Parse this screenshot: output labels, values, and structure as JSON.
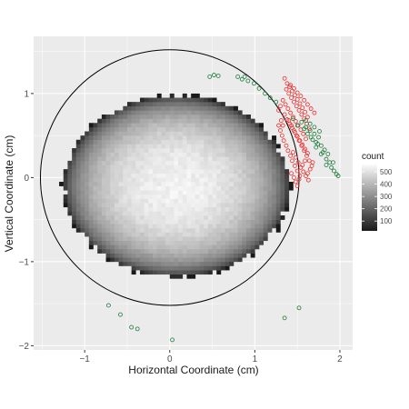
{
  "chart_data": {
    "type": "heatmap",
    "xlabel": "Horizontal Coordinate (cm)",
    "ylabel": "Vertical Coordinate (cm)",
    "xlim": [
      -1.6,
      2.15
    ],
    "ylim": [
      -2.05,
      1.68
    ],
    "x_ticks": [
      -1,
      0,
      1,
      2
    ],
    "x_tick_labels": [
      "−1",
      "0",
      "1",
      "2"
    ],
    "y_ticks": [
      -2,
      -1,
      0,
      1
    ],
    "y_tick_labels": [
      "−2",
      "−1",
      "0",
      "1"
    ],
    "grid": true,
    "legend": {
      "title": "count",
      "position": "right",
      "labels": [
        "500",
        "400",
        "300",
        "200",
        "100"
      ],
      "values": [
        500,
        400,
        300,
        200,
        100
      ],
      "range": [
        20,
        560
      ]
    },
    "heatmap": {
      "bin_size": 0.05,
      "center": [
        0.08,
        -0.1
      ],
      "radius_x": 1.33,
      "radius_y_top": 1.08,
      "radius_y_bottom": 1.08,
      "peak_count": 560,
      "min_count": 20
    },
    "circle": {
      "center": [
        0,
        0
      ],
      "radius": 1.52,
      "color": "#000000"
    },
    "series": [
      {
        "color": "#ee2c2c",
        "marker": "open-circle",
        "points": [
          [
            1.35,
            1.18
          ],
          [
            1.38,
            1.12
          ],
          [
            1.41,
            1.08
          ],
          [
            1.44,
            1.03
          ],
          [
            1.47,
            0.98
          ],
          [
            1.5,
            0.93
          ],
          [
            1.53,
            0.88
          ],
          [
            1.56,
            0.83
          ],
          [
            1.59,
            0.78
          ],
          [
            1.62,
            0.72
          ],
          [
            1.37,
            1.05
          ],
          [
            1.4,
            1.0
          ],
          [
            1.43,
            0.95
          ],
          [
            1.46,
            0.9
          ],
          [
            1.49,
            0.85
          ],
          [
            1.52,
            0.8
          ],
          [
            1.55,
            0.75
          ],
          [
            1.58,
            0.7
          ],
          [
            1.61,
            0.64
          ],
          [
            1.64,
            0.58
          ],
          [
            1.33,
            0.92
          ],
          [
            1.36,
            0.87
          ],
          [
            1.39,
            0.82
          ],
          [
            1.42,
            0.77
          ],
          [
            1.45,
            0.72
          ],
          [
            1.48,
            0.67
          ],
          [
            1.51,
            0.62
          ],
          [
            1.54,
            0.57
          ],
          [
            1.57,
            0.52
          ],
          [
            1.6,
            0.46
          ],
          [
            1.42,
            1.1
          ],
          [
            1.46,
            1.06
          ],
          [
            1.5,
            1.01
          ],
          [
            1.54,
            0.97
          ],
          [
            1.58,
            0.92
          ],
          [
            1.62,
            0.87
          ],
          [
            1.66,
            0.82
          ],
          [
            1.7,
            0.77
          ],
          [
            1.3,
            0.85
          ],
          [
            1.28,
            0.8
          ],
          [
            1.35,
            0.75
          ],
          [
            1.38,
            0.69
          ],
          [
            1.41,
            0.64
          ],
          [
            1.44,
            0.59
          ],
          [
            1.47,
            0.54
          ],
          [
            1.5,
            0.49
          ],
          [
            1.53,
            0.44
          ],
          [
            1.56,
            0.39
          ],
          [
            1.59,
            0.34
          ],
          [
            1.62,
            0.29
          ],
          [
            1.4,
            0.68
          ],
          [
            1.43,
            0.62
          ],
          [
            1.46,
            0.56
          ],
          [
            1.49,
            0.5
          ],
          [
            1.52,
            0.44
          ],
          [
            1.55,
            0.38
          ],
          [
            1.58,
            0.32
          ],
          [
            1.61,
            0.26
          ],
          [
            1.64,
            0.2
          ],
          [
            1.67,
            0.14
          ],
          [
            1.45,
            0.3
          ],
          [
            1.48,
            0.24
          ],
          [
            1.51,
            0.18
          ],
          [
            1.54,
            0.12
          ],
          [
            1.57,
            0.07
          ],
          [
            1.6,
            0.02
          ],
          [
            1.63,
            -0.03
          ],
          [
            1.5,
            0.08
          ],
          [
            1.53,
            0.02
          ],
          [
            1.47,
            0.14
          ],
          [
            1.44,
            0.2
          ],
          [
            1.42,
            0.26
          ],
          [
            1.39,
            0.32
          ],
          [
            1.37,
            0.38
          ],
          [
            1.34,
            0.44
          ],
          [
            1.32,
            0.5
          ],
          [
            1.3,
            0.56
          ],
          [
            1.28,
            0.62
          ],
          [
            1.31,
            0.68
          ],
          [
            1.33,
            0.62
          ],
          [
            1.48,
            -0.05
          ],
          [
            1.5,
            -0.1
          ],
          [
            1.46,
            0.0
          ],
          [
            1.52,
            -0.02
          ],
          [
            1.43,
            0.05
          ],
          [
            1.56,
            0.15
          ],
          [
            1.59,
            0.2
          ],
          [
            1.62,
            0.05
          ],
          [
            1.65,
            0.1
          ],
          [
            1.68,
            0.18
          ]
        ]
      },
      {
        "color": "#1b7a3a",
        "marker": "open-circle",
        "points": [
          [
            0.47,
            1.2
          ],
          [
            0.52,
            1.22
          ],
          [
            0.57,
            1.21
          ],
          [
            0.8,
            1.2
          ],
          [
            0.85,
            1.17
          ],
          [
            0.88,
            1.2
          ],
          [
            0.92,
            1.15
          ],
          [
            0.99,
            1.12
          ],
          [
            1.05,
            1.06
          ],
          [
            1.12,
            1.0
          ],
          [
            1.5,
            0.62
          ],
          [
            1.55,
            0.66
          ],
          [
            1.6,
            0.6
          ],
          [
            1.65,
            0.56
          ],
          [
            1.7,
            0.52
          ],
          [
            1.75,
            0.48
          ],
          [
            1.72,
            0.42
          ],
          [
            1.78,
            0.38
          ],
          [
            1.82,
            0.33
          ],
          [
            1.86,
            0.28
          ],
          [
            1.6,
            0.68
          ],
          [
            1.65,
            0.64
          ],
          [
            1.7,
            0.6
          ],
          [
            1.68,
            0.45
          ],
          [
            1.74,
            0.4
          ],
          [
            1.8,
            0.3
          ],
          [
            1.84,
            0.22
          ],
          [
            1.88,
            0.18
          ],
          [
            1.9,
            0.12
          ],
          [
            1.93,
            0.08
          ],
          [
            1.96,
            0.04
          ],
          [
            1.98,
            0.02
          ],
          [
            1.62,
            0.52
          ],
          [
            1.66,
            0.48
          ],
          [
            1.76,
            0.55
          ],
          [
            1.58,
            0.58
          ],
          [
            1.72,
            0.36
          ],
          [
            1.78,
            0.28
          ],
          [
            1.84,
            0.15
          ],
          [
            1.92,
            0.18
          ],
          [
            -0.72,
            -1.52
          ],
          [
            -0.58,
            -1.63
          ],
          [
            -0.45,
            -1.78
          ],
          [
            -0.38,
            -1.8
          ],
          [
            0.03,
            -1.93
          ],
          [
            1.35,
            -1.67
          ],
          [
            1.52,
            -1.55
          ],
          [
            1.18,
            0.95
          ],
          [
            1.25,
            0.9
          ],
          [
            1.45,
            0.7
          ]
        ]
      }
    ]
  }
}
